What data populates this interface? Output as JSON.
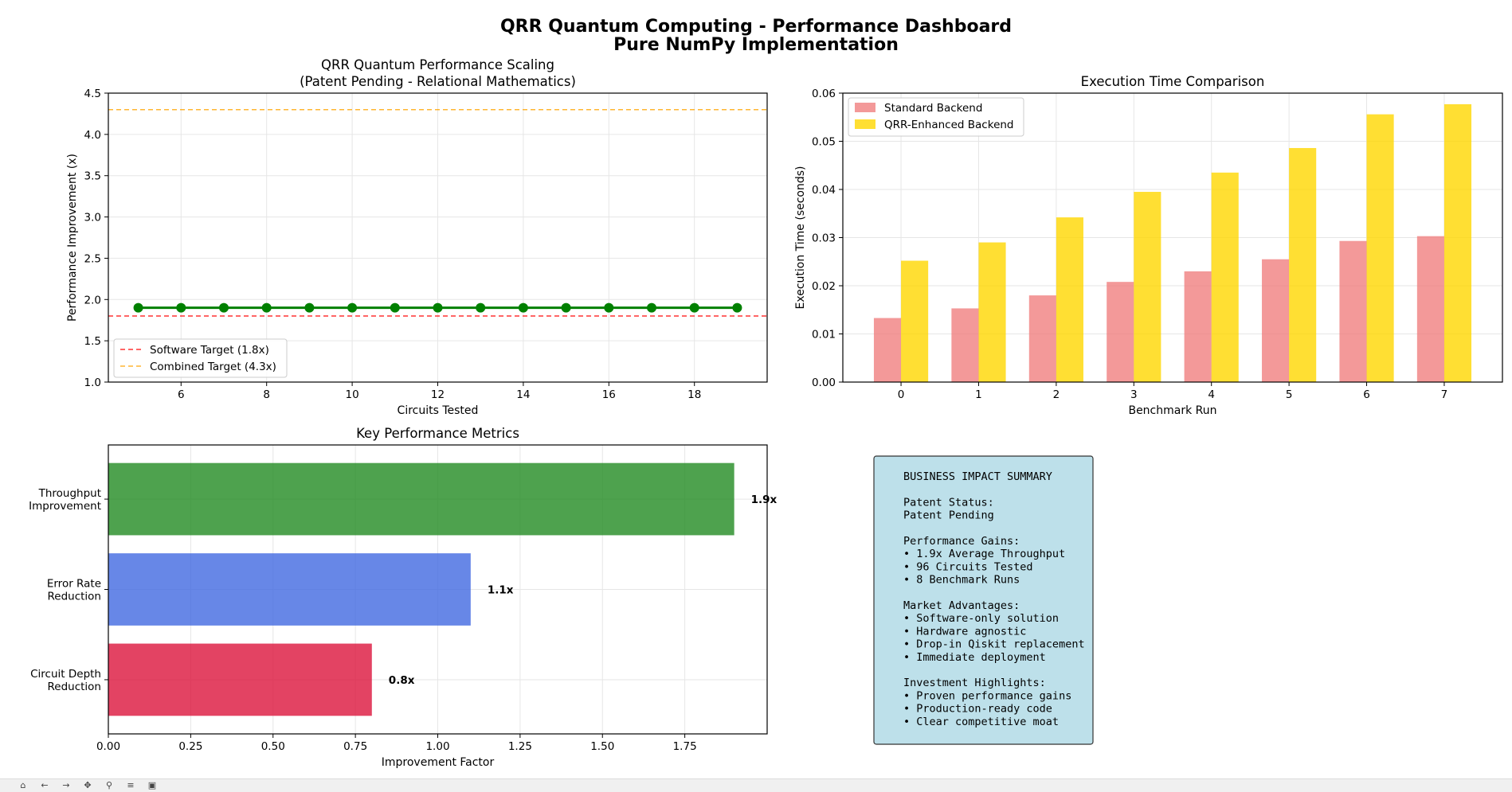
{
  "figure": {
    "title_line1": "QRR Quantum Computing - Performance Dashboard",
    "title_line2": "Pure NumPy Implementation"
  },
  "chart_data": [
    {
      "type": "line",
      "title": "QRR Quantum Performance Scaling",
      "subtitle": "(Patent Pending - Relational Mathematics)",
      "xlabel": "Circuits Tested",
      "ylabel": "Performance Improvement (x)",
      "x": [
        5,
        6,
        7,
        8,
        9,
        10,
        11,
        12,
        13,
        14,
        15,
        16,
        17,
        18,
        19
      ],
      "series": [
        {
          "values": [
            1.9,
            1.9,
            1.9,
            1.9,
            1.9,
            1.9,
            1.9,
            1.9,
            1.9,
            1.9,
            1.9,
            1.9,
            1.9,
            1.9,
            1.9
          ],
          "color": "#008000"
        }
      ],
      "reference_lines": [
        {
          "name": "Software Target (1.8x)",
          "value": 1.8,
          "color": "#ff0000"
        },
        {
          "name": "Combined Target (4.3x)",
          "value": 4.3,
          "color": "#ffa500"
        }
      ],
      "xlim": [
        4.3,
        19.7
      ],
      "ylim": [
        1.0,
        4.5
      ],
      "xticks": [
        6,
        8,
        10,
        12,
        14,
        16,
        18
      ],
      "yticks": [
        1.0,
        1.5,
        2.0,
        2.5,
        3.0,
        3.5,
        4.0,
        4.5
      ],
      "grid": true,
      "legend": "lower-left"
    },
    {
      "type": "bar",
      "title": "Execution Time Comparison",
      "xlabel": "Benchmark Run",
      "ylabel": "Execution Time (seconds)",
      "categories": [
        "0",
        "1",
        "2",
        "3",
        "4",
        "5",
        "6",
        "7"
      ],
      "series": [
        {
          "name": "Standard Backend",
          "color": "#f08080",
          "values": [
            0.0133,
            0.0153,
            0.018,
            0.0208,
            0.023,
            0.0255,
            0.0293,
            0.0303
          ]
        },
        {
          "name": "QRR-Enhanced Backend",
          "color": "#ffd700",
          "values": [
            0.0252,
            0.029,
            0.0342,
            0.0395,
            0.0435,
            0.0486,
            0.0556,
            0.0577
          ]
        }
      ],
      "ylim": [
        0,
        0.06
      ],
      "yticks": [
        "0.00",
        "0.01",
        "0.02",
        "0.03",
        "0.04",
        "0.05",
        "0.06"
      ],
      "grid": true,
      "legend": "upper-left"
    },
    {
      "type": "bar",
      "orientation": "horizontal",
      "title": "Key Performance Metrics",
      "xlabel": "Improvement Factor",
      "categories": [
        "Throughput\nImprovement",
        "Error Rate\nReduction",
        "Circuit Depth\nReduction"
      ],
      "values": [
        1.9,
        1.1,
        0.8
      ],
      "value_labels": [
        "1.9x",
        "1.1x",
        "0.8x"
      ],
      "colors": [
        "#228b22",
        "#4169e1",
        "#dc143c"
      ],
      "xlim": [
        0,
        2.0
      ],
      "xticks": [
        "0.00",
        "0.25",
        "0.50",
        "0.75",
        "1.00",
        "1.25",
        "1.50",
        "1.75"
      ],
      "grid": true
    }
  ],
  "summary": {
    "lines": [
      "BUSINESS IMPACT SUMMARY",
      "",
      "Patent Status:",
      "Patent Pending",
      "",
      "Performance Gains:",
      "• 1.9x Average Throughput",
      "• 96 Circuits Tested",
      "• 8 Benchmark Runs",
      "",
      "Market Advantages:",
      "• Software-only solution",
      "• Hardware agnostic",
      "• Drop-in Qiskit replacement",
      "• Immediate deployment",
      "",
      "Investment Highlights:",
      "• Proven performance gains",
      "• Production-ready code",
      "• Clear competitive moat"
    ],
    "background": "#add8e6"
  },
  "toolbar": {
    "icons": [
      "home-icon",
      "back-icon",
      "forward-icon",
      "pan-icon",
      "zoom-icon",
      "configure-icon",
      "save-icon"
    ]
  }
}
